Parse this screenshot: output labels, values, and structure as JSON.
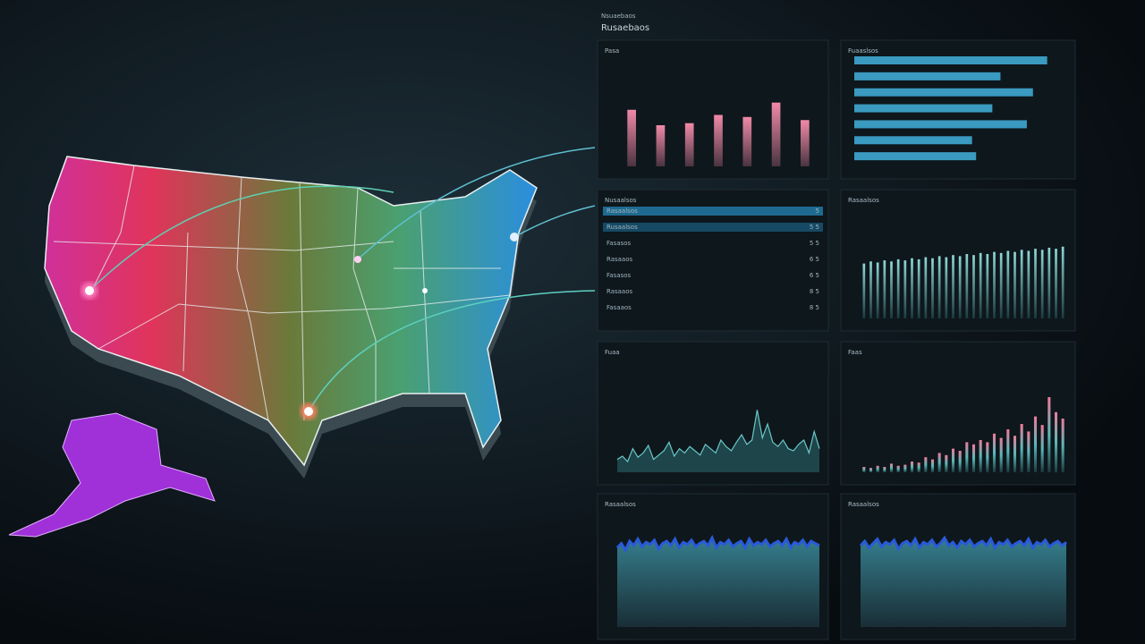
{
  "header": {
    "subtitle": "Nsuaebaos",
    "title": "Rusaebaos"
  },
  "panels": [
    {
      "title": "Pasa",
      "type": "bar",
      "ylim": [
        0,
        100
      ],
      "values": [
        55,
        40,
        42,
        50,
        48,
        62,
        45
      ]
    },
    {
      "title": "Fuaaslsos",
      "type": "hbar",
      "ylim": [
        0,
        100
      ],
      "values": [
        95,
        72,
        88,
        68,
        85,
        58,
        60
      ]
    },
    {
      "title": "Nusaalsos",
      "type": "list",
      "rows": [
        [
          "Rasaalsos",
          "5"
        ],
        [
          "Rusaalsos",
          "5 5"
        ],
        [
          "Fasasos",
          "5 5"
        ],
        [
          "Rasaaos",
          "6 5"
        ],
        [
          "Fasasos",
          "6 5"
        ],
        [
          "Rasaaos",
          "8 5"
        ],
        [
          "Fasaaos",
          "8 5"
        ]
      ]
    },
    {
      "title": "Rasaalsos",
      "type": "thin",
      "ylim": [
        0,
        100
      ],
      "values": [
        52,
        54,
        53,
        55,
        54,
        56,
        55,
        57,
        56,
        58,
        57,
        59,
        58,
        60,
        59,
        61,
        60,
        62,
        61,
        63,
        62,
        64,
        63,
        65,
        64,
        66,
        65,
        67,
        66,
        68
      ]
    },
    {
      "title": "Fuaa",
      "type": "spike",
      "ylim": [
        0,
        100
      ],
      "values": [
        12,
        15,
        10,
        22,
        14,
        18,
        25,
        12,
        16,
        20,
        28,
        15,
        22,
        18,
        24,
        20,
        16,
        26,
        22,
        18,
        30,
        24,
        20,
        28,
        35,
        26,
        30,
        58,
        32,
        45,
        28,
        24,
        30,
        22,
        20,
        26,
        30,
        18,
        38,
        22
      ]
    },
    {
      "title": "Faas",
      "type": "rise",
      "ylim": [
        0,
        100
      ],
      "values": [
        5,
        4,
        6,
        5,
        8,
        6,
        7,
        10,
        9,
        14,
        12,
        18,
        16,
        22,
        20,
        28,
        26,
        30,
        28,
        36,
        32,
        40,
        34,
        45,
        38,
        52,
        44,
        70,
        56,
        50
      ]
    },
    {
      "title": "Rasaalsos",
      "type": "area",
      "ylim": [
        0,
        100
      ],
      "values": [
        72,
        76,
        70,
        78,
        74,
        80,
        73,
        77,
        75,
        79,
        71,
        76,
        78,
        74,
        80,
        72,
        77,
        75,
        79,
        73,
        76,
        78,
        74,
        81,
        72,
        77,
        75,
        79,
        73,
        76,
        78,
        72,
        80,
        74,
        77,
        75,
        79,
        73,
        76,
        78,
        74,
        80,
        72,
        77,
        75,
        79,
        73,
        78,
        76,
        74
      ]
    },
    {
      "title": "Rasaalsos",
      "type": "area",
      "ylim": [
        0,
        100
      ],
      "values": [
        74,
        78,
        72,
        76,
        80,
        73,
        77,
        75,
        79,
        71,
        76,
        78,
        74,
        80,
        72,
        77,
        75,
        79,
        73,
        76,
        81,
        74,
        77,
        72,
        78,
        75,
        79,
        73,
        76,
        78,
        74,
        80,
        72,
        77,
        75,
        79,
        73,
        76,
        78,
        74,
        80,
        72,
        77,
        75,
        79,
        73,
        76,
        78,
        74,
        77
      ]
    }
  ]
}
